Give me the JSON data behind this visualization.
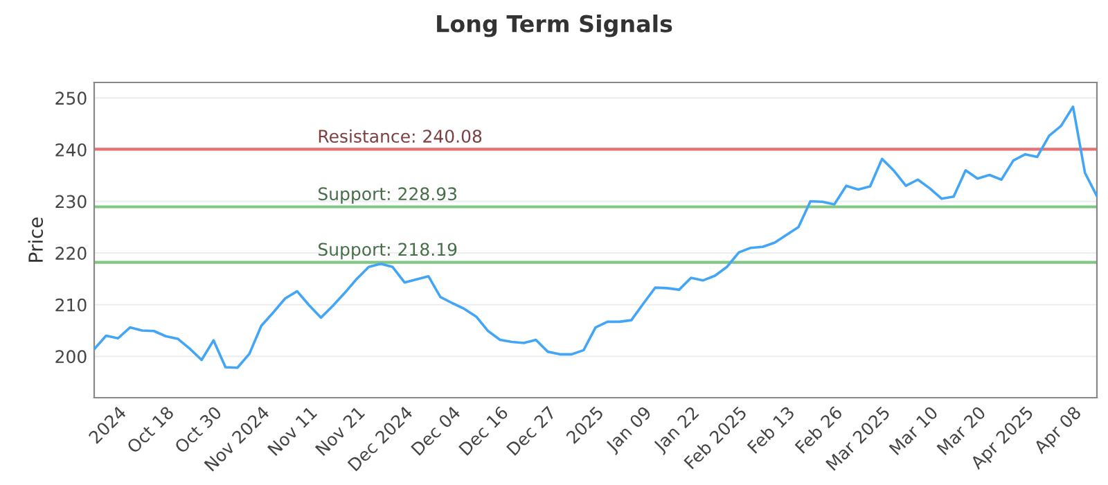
{
  "chart_data": {
    "type": "line",
    "title": "Long Term Signals",
    "ylabel": "Price",
    "categories": [
      null,
      null,
      "2024",
      null,
      null,
      null,
      "Oct 18",
      null,
      null,
      null,
      "Oct 30",
      null,
      null,
      null,
      "Nov 2024",
      null,
      null,
      null,
      "Nov 11",
      null,
      null,
      null,
      "Nov 21",
      null,
      null,
      null,
      "Dec 2024",
      null,
      null,
      null,
      "Dec 04",
      null,
      null,
      null,
      "Dec 16",
      null,
      null,
      null,
      "Dec 27",
      null,
      null,
      null,
      "2025",
      null,
      null,
      null,
      "Jan 09",
      null,
      null,
      null,
      "Jan 22",
      null,
      null,
      null,
      "Feb 2025",
      null,
      null,
      null,
      "Feb 13",
      null,
      null,
      null,
      "Feb 26",
      null,
      null,
      null,
      "Mar 2025",
      null,
      null,
      null,
      "Mar 10",
      null,
      null,
      null,
      "Mar 20",
      null,
      null,
      null,
      "Apr 2025",
      null,
      null,
      null,
      "Apr 08",
      null,
      null
    ],
    "series": [
      {
        "color": "#42a5f5",
        "values": [
          201.4,
          204.0,
          203.5,
          205.6,
          205.0,
          204.9,
          203.9,
          203.4,
          201.5,
          199.3,
          203.1,
          197.9,
          197.8,
          200.5,
          205.9,
          208.5,
          211.2,
          212.6,
          209.9,
          207.5,
          209.8,
          212.3,
          215.0,
          217.3,
          217.9,
          217.3,
          214.3,
          214.9,
          215.5,
          211.5,
          210.3,
          209.2,
          207.7,
          204.9,
          203.2,
          202.8,
          202.6,
          203.2,
          200.9,
          200.4,
          200.4,
          201.2,
          205.6,
          206.7,
          206.7,
          207.0,
          210.2,
          213.3,
          213.2,
          212.9,
          215.2,
          214.7,
          215.6,
          217.3,
          220.1,
          221.0,
          221.2,
          222.0,
          223.5,
          225.0,
          230.0,
          229.9,
          229.4,
          233.0,
          232.3,
          232.9,
          238.2,
          235.9,
          233.0,
          234.2,
          232.5,
          230.5,
          230.9,
          236.0,
          234.4,
          235.1,
          234.2,
          237.9,
          239.1,
          238.6,
          242.7,
          244.6,
          248.3,
          235.5,
          231.0
        ]
      }
    ],
    "ylim": [
      192,
      253
    ],
    "yticks": [
      200,
      210,
      220,
      230,
      240,
      250
    ],
    "grid": "y",
    "marker": "none",
    "line_style": "solid",
    "ref_lines": [
      {
        "axis": "y",
        "value": 240.08,
        "label": "Resistance: 240.08",
        "color": "#e57373"
      },
      {
        "axis": "y",
        "value": 228.93,
        "label": "Support: 228.93",
        "color": "#81c784"
      },
      {
        "axis": "y",
        "value": 218.19,
        "label": "Support: 218.19",
        "color": "#81c784"
      }
    ]
  }
}
